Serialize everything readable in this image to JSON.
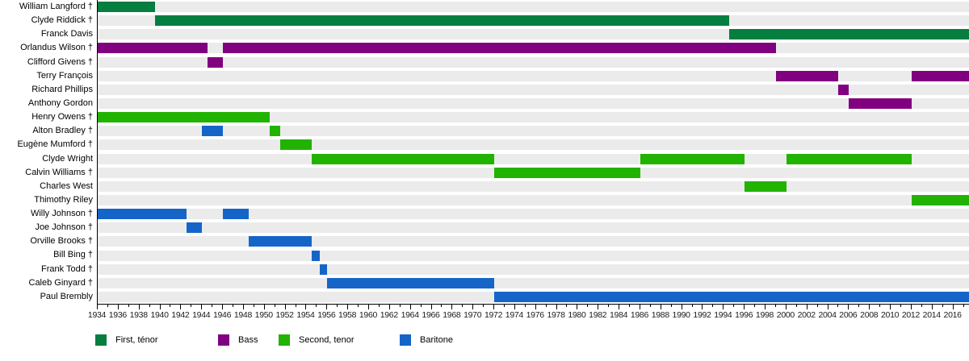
{
  "chart_data": {
    "type": "bar",
    "subtype": "gantt-membership-timeline",
    "title": "",
    "x_axis": {
      "start": 1934,
      "end": 2017.5,
      "minor_tick_step_years": 1,
      "label_step_years": 2,
      "tick_labels": [
        1934,
        1936,
        1938,
        1940,
        1942,
        1944,
        1946,
        1948,
        1950,
        1952,
        1954,
        1956,
        1958,
        1960,
        1962,
        1964,
        1966,
        1968,
        1970,
        1972,
        1974,
        1976,
        1978,
        1980,
        1982,
        1984,
        1986,
        1988,
        1990,
        1992,
        1994,
        1996,
        1998,
        2000,
        2002,
        2004,
        2006,
        2008,
        2010,
        2012,
        2014,
        2016
      ]
    },
    "roles": {
      "first_tenor": {
        "label": "First, ténor",
        "color": "#067e3f"
      },
      "bass": {
        "label": "Bass",
        "color": "#800080"
      },
      "second_tenor": {
        "label": "Second, tenor",
        "color": "#22b200"
      },
      "baritone": {
        "label": "Baritone",
        "color": "#1565c8"
      }
    },
    "legend": [
      {
        "role": "first_tenor"
      },
      {
        "role": "bass"
      },
      {
        "role": "second_tenor"
      },
      {
        "role": "baritone"
      }
    ],
    "row_track_color": "#ebebeb",
    "rows": [
      {
        "name": "William Langford †",
        "segments": [
          {
            "role": "first_tenor",
            "start": 1934,
            "end": 1939.5
          }
        ]
      },
      {
        "name": "Clyde Riddick †",
        "segments": [
          {
            "role": "first_tenor",
            "start": 1939.5,
            "end": 1994.5
          }
        ]
      },
      {
        "name": "Franck Davis",
        "segments": [
          {
            "role": "first_tenor",
            "start": 1994.5,
            "end": 2017.5
          }
        ]
      },
      {
        "name": "Orlandus Wilson †",
        "segments": [
          {
            "role": "bass",
            "start": 1934,
            "end": 1944.5
          },
          {
            "role": "bass",
            "start": 1946,
            "end": 1999
          }
        ]
      },
      {
        "name": "Clifford Givens †",
        "segments": [
          {
            "role": "bass",
            "start": 1944.5,
            "end": 1946
          }
        ]
      },
      {
        "name": "Terry François",
        "segments": [
          {
            "role": "bass",
            "start": 1999,
            "end": 2005
          },
          {
            "role": "bass",
            "start": 2012,
            "end": 2017.5
          }
        ]
      },
      {
        "name": "Richard Phillips",
        "segments": [
          {
            "role": "bass",
            "start": 2005,
            "end": 2006
          }
        ]
      },
      {
        "name": "Anthony Gordon",
        "segments": [
          {
            "role": "bass",
            "start": 2006,
            "end": 2012
          }
        ]
      },
      {
        "name": "Henry Owens †",
        "segments": [
          {
            "role": "second_tenor",
            "start": 1934,
            "end": 1950.5
          }
        ]
      },
      {
        "name": "Alton Bradley †",
        "segments": [
          {
            "role": "baritone",
            "start": 1944,
            "end": 1946
          },
          {
            "role": "second_tenor",
            "start": 1950.5,
            "end": 1951.5
          }
        ]
      },
      {
        "name": "Eugène Mumford †",
        "segments": [
          {
            "role": "second_tenor",
            "start": 1951.5,
            "end": 1954.5
          }
        ]
      },
      {
        "name": "Clyde Wright",
        "segments": [
          {
            "role": "second_tenor",
            "start": 1954.5,
            "end": 1972
          },
          {
            "role": "second_tenor",
            "start": 1986,
            "end": 1996
          },
          {
            "role": "second_tenor",
            "start": 2000,
            "end": 2012
          }
        ]
      },
      {
        "name": "Calvin Williams †",
        "segments": [
          {
            "role": "second_tenor",
            "start": 1972,
            "end": 1986
          }
        ]
      },
      {
        "name": "Charles West",
        "segments": [
          {
            "role": "second_tenor",
            "start": 1996,
            "end": 2000
          }
        ]
      },
      {
        "name": "Thimothy Riley",
        "segments": [
          {
            "role": "second_tenor",
            "start": 2012,
            "end": 2017.5
          }
        ]
      },
      {
        "name": "Willy Johnson †",
        "segments": [
          {
            "role": "baritone",
            "start": 1934,
            "end": 1942.5
          },
          {
            "role": "baritone",
            "start": 1946,
            "end": 1948.5
          }
        ]
      },
      {
        "name": "Joe Johnson †",
        "segments": [
          {
            "role": "baritone",
            "start": 1942.5,
            "end": 1944
          }
        ]
      },
      {
        "name": "Orville Brooks †",
        "segments": [
          {
            "role": "baritone",
            "start": 1948.5,
            "end": 1954.5
          }
        ]
      },
      {
        "name": "Bill Bing †",
        "segments": [
          {
            "role": "baritone",
            "start": 1954.5,
            "end": 1955.3
          }
        ]
      },
      {
        "name": "Frank Todd †",
        "segments": [
          {
            "role": "baritone",
            "start": 1955.3,
            "end": 1956
          }
        ]
      },
      {
        "name": "Caleb Ginyard †",
        "segments": [
          {
            "role": "baritone",
            "start": 1956,
            "end": 1972
          }
        ]
      },
      {
        "name": "Paul Brembly",
        "segments": [
          {
            "role": "baritone",
            "start": 1972,
            "end": 2017.5
          }
        ]
      }
    ]
  }
}
